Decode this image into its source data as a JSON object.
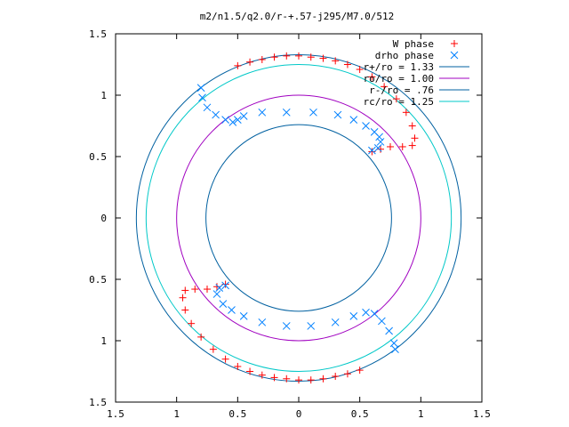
{
  "chart_data": {
    "type": "scatter",
    "title": "m2/n1.5/q2.0/r-+.57-j295/M7.0/512",
    "xlabel": "",
    "ylabel": "",
    "xlim": [
      -1.5,
      1.5
    ],
    "ylim": [
      -1.5,
      1.5
    ],
    "xticks": [
      "1.5",
      "1",
      "0.5",
      "0",
      "0.5",
      "1",
      "1.5"
    ],
    "yticks": [
      "1.5",
      "1",
      "0.5",
      "0",
      "0.5",
      "1",
      "1.5"
    ],
    "grid": false,
    "legend_position": "top-right",
    "colors": {
      "w_phase": "#ff0000",
      "drho_phase": "#0080ff",
      "r_plus": "#0060a0",
      "r_zero": "#a000c0",
      "r_minus": "#0060a0",
      "r_c": "#00c8c8"
    },
    "circles": [
      {
        "name": "r+/ro = 1.33",
        "radius": 1.33,
        "color": "#0060a0"
      },
      {
        "name": "ro/ro = 1.00",
        "radius": 1.0,
        "color": "#a000c0"
      },
      {
        "name": "r-/ro = .76",
        "radius": 0.76,
        "color": "#0060a0"
      },
      {
        "name": "rc/ro = 1.25",
        "radius": 1.25,
        "color": "#00c8c8"
      }
    ],
    "series": [
      {
        "name": "W phase",
        "marker": "plus",
        "color": "#ff0000",
        "points": [
          [
            -0.5,
            1.24
          ],
          [
            -0.4,
            1.27
          ],
          [
            -0.3,
            1.29
          ],
          [
            -0.2,
            1.31
          ],
          [
            -0.1,
            1.32
          ],
          [
            0.0,
            1.32
          ],
          [
            0.1,
            1.31
          ],
          [
            0.2,
            1.3
          ],
          [
            0.3,
            1.28
          ],
          [
            0.4,
            1.25
          ],
          [
            0.5,
            1.21
          ],
          [
            0.6,
            1.15
          ],
          [
            0.7,
            1.07
          ],
          [
            0.8,
            0.97
          ],
          [
            0.88,
            0.86
          ],
          [
            0.93,
            0.75
          ],
          [
            0.95,
            0.65
          ],
          [
            0.93,
            0.59
          ],
          [
            0.85,
            0.58
          ],
          [
            0.75,
            0.58
          ],
          [
            0.67,
            0.56
          ],
          [
            0.6,
            0.54
          ],
          [
            -0.6,
            -0.54
          ],
          [
            -0.67,
            -0.56
          ],
          [
            -0.75,
            -0.58
          ],
          [
            -0.85,
            -0.58
          ],
          [
            -0.93,
            -0.59
          ],
          [
            -0.95,
            -0.65
          ],
          [
            -0.93,
            -0.75
          ],
          [
            -0.88,
            -0.86
          ],
          [
            -0.8,
            -0.97
          ],
          [
            -0.7,
            -1.07
          ],
          [
            -0.6,
            -1.15
          ],
          [
            -0.5,
            -1.21
          ],
          [
            -0.4,
            -1.25
          ],
          [
            -0.3,
            -1.28
          ],
          [
            -0.2,
            -1.3
          ],
          [
            -0.1,
            -1.31
          ],
          [
            0.0,
            -1.32
          ],
          [
            0.1,
            -1.32
          ],
          [
            0.2,
            -1.31
          ],
          [
            0.3,
            -1.29
          ],
          [
            0.4,
            -1.27
          ],
          [
            0.5,
            -1.24
          ]
        ]
      },
      {
        "name": "drho phase",
        "marker": "cross",
        "color": "#0080ff",
        "points": [
          [
            -0.8,
            1.06
          ],
          [
            -0.79,
            0.98
          ],
          [
            -0.75,
            0.9
          ],
          [
            -0.68,
            0.84
          ],
          [
            -0.6,
            0.8
          ],
          [
            -0.54,
            0.78
          ],
          [
            -0.5,
            0.8
          ],
          [
            -0.45,
            0.83
          ],
          [
            -0.3,
            0.86
          ],
          [
            -0.1,
            0.86
          ],
          [
            0.12,
            0.86
          ],
          [
            0.32,
            0.84
          ],
          [
            0.45,
            0.8
          ],
          [
            0.55,
            0.75
          ],
          [
            0.62,
            0.7
          ],
          [
            0.66,
            0.66
          ],
          [
            0.67,
            0.62
          ],
          [
            0.65,
            0.57
          ],
          [
            0.6,
            0.55
          ],
          [
            -0.6,
            -0.55
          ],
          [
            -0.65,
            -0.57
          ],
          [
            -0.67,
            -0.62
          ],
          [
            -0.62,
            -0.7
          ],
          [
            -0.55,
            -0.75
          ],
          [
            -0.45,
            -0.8
          ],
          [
            -0.3,
            -0.85
          ],
          [
            -0.1,
            -0.88
          ],
          [
            0.1,
            -0.88
          ],
          [
            0.3,
            -0.85
          ],
          [
            0.45,
            -0.8
          ],
          [
            0.55,
            -0.77
          ],
          [
            0.62,
            -0.78
          ],
          [
            0.68,
            -0.84
          ],
          [
            0.74,
            -0.92
          ],
          [
            0.78,
            -1.02
          ],
          [
            0.79,
            -1.07
          ]
        ]
      }
    ]
  }
}
